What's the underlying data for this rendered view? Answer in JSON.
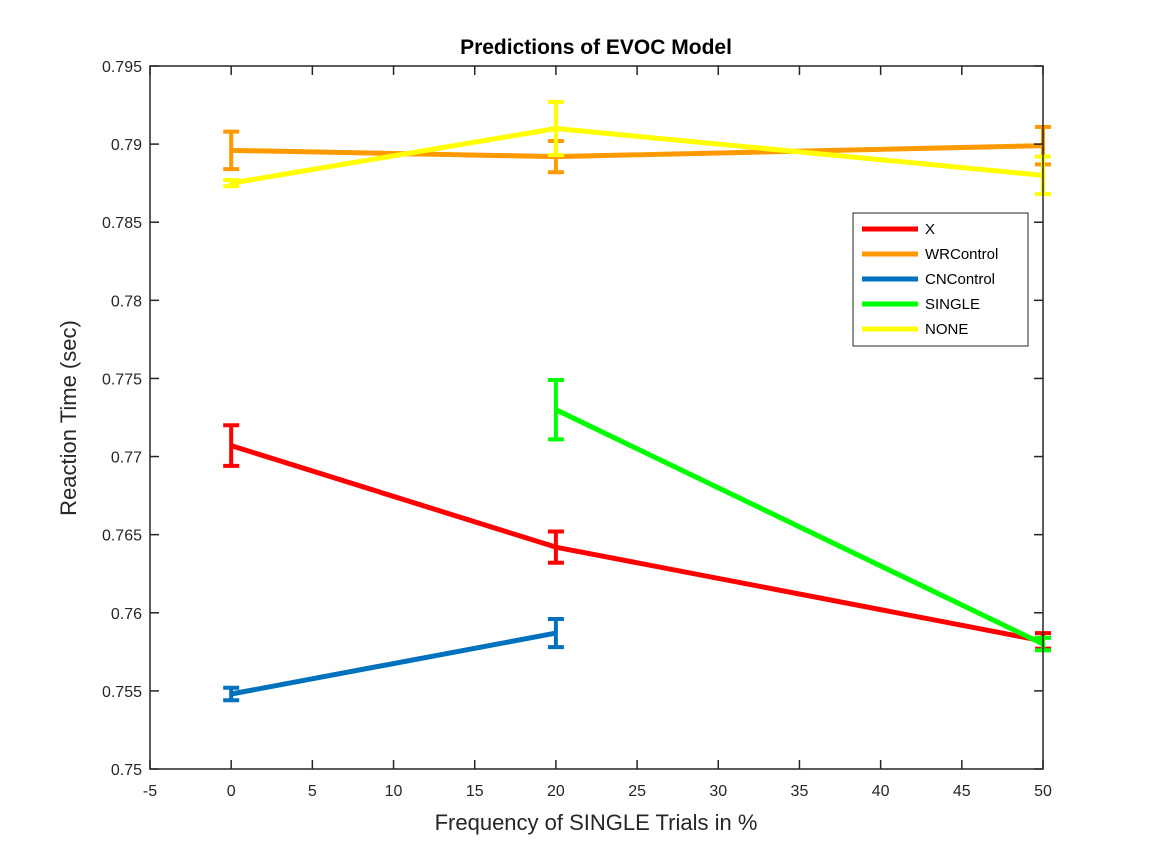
{
  "chart_data": {
    "type": "line",
    "title": "Predictions of EVOC Model",
    "xlabel": "Frequency of SINGLE Trials in %",
    "ylabel": "Reaction Time (sec)",
    "xlim": [
      -5,
      50
    ],
    "ylim": [
      0.75,
      0.795
    ],
    "xticks": [
      -5,
      0,
      5,
      10,
      15,
      20,
      25,
      30,
      35,
      40,
      45,
      50
    ],
    "xtick_labels": [
      "-5",
      "0",
      "5",
      "10",
      "15",
      "20",
      "25",
      "30",
      "35",
      "40",
      "45",
      "50"
    ],
    "yticks": [
      0.75,
      0.755,
      0.76,
      0.765,
      0.77,
      0.775,
      0.78,
      0.785,
      0.79,
      0.795
    ],
    "ytick_labels": [
      "0.75",
      "0.755",
      "0.76",
      "0.765",
      "0.77",
      "0.775",
      "0.78",
      "0.785",
      "0.79",
      "0.795"
    ],
    "grid": false,
    "legend_position": "upper-right",
    "series": [
      {
        "name": "X",
        "color": "#ff0000",
        "x": [
          0,
          20,
          50
        ],
        "y": [
          0.7707,
          0.7642,
          0.7582
        ],
        "err": [
          0.0013,
          0.001,
          0.0005
        ]
      },
      {
        "name": "WRControl",
        "color": "#ff9900",
        "x": [
          0,
          20,
          50
        ],
        "y": [
          0.7896,
          0.7892,
          0.7899
        ],
        "err": [
          0.0012,
          0.001,
          0.0012
        ]
      },
      {
        "name": "CNControl",
        "color": "#0072bd",
        "x": [
          0,
          20
        ],
        "y": [
          0.7548,
          0.7587
        ],
        "err": [
          0.0004,
          0.0009
        ]
      },
      {
        "name": "SINGLE",
        "color": "#00ff00",
        "x": [
          20,
          50
        ],
        "y": [
          0.773,
          0.758
        ],
        "err": [
          0.0019,
          0.0004
        ]
      },
      {
        "name": "NONE",
        "color": "#ffff00",
        "x": [
          0,
          20,
          50
        ],
        "y": [
          0.7875,
          0.791,
          0.788
        ],
        "err": [
          0.0002,
          0.0017,
          0.0012
        ]
      }
    ]
  }
}
